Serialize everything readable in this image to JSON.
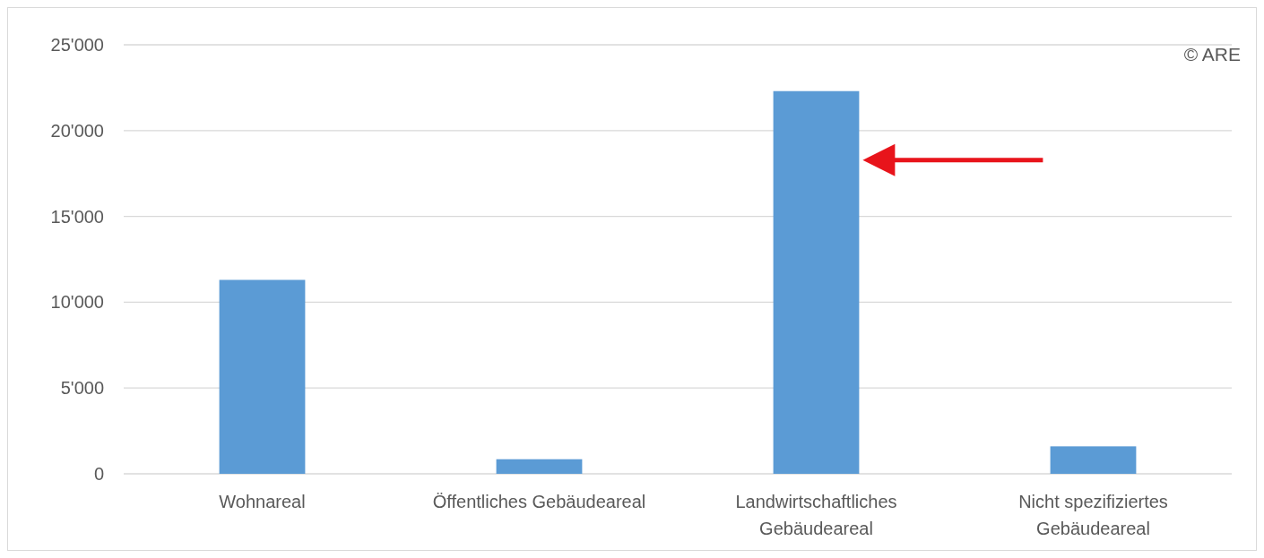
{
  "chart_data": {
    "type": "bar",
    "categories": [
      "Wohnareal",
      "Öffentliches Gebäudeareal",
      "Landwirtschaftliches Gebäudeareal",
      "Nicht spezifiziertes Gebäudeareal"
    ],
    "values": [
      11300,
      850,
      22300,
      1600
    ],
    "color": "#5b9bd5",
    "ylim": [
      0,
      25000
    ],
    "yticks": [
      {
        "value": 0,
        "label": "0"
      },
      {
        "value": 5000,
        "label": "5'000"
      },
      {
        "value": 10000,
        "label": "10'000"
      },
      {
        "value": 15000,
        "label": "15'000"
      },
      {
        "value": 20000,
        "label": "20'000"
      },
      {
        "value": 25000,
        "label": "25'000"
      }
    ],
    "grid": "y",
    "annotations": [
      "© ARE"
    ]
  }
}
